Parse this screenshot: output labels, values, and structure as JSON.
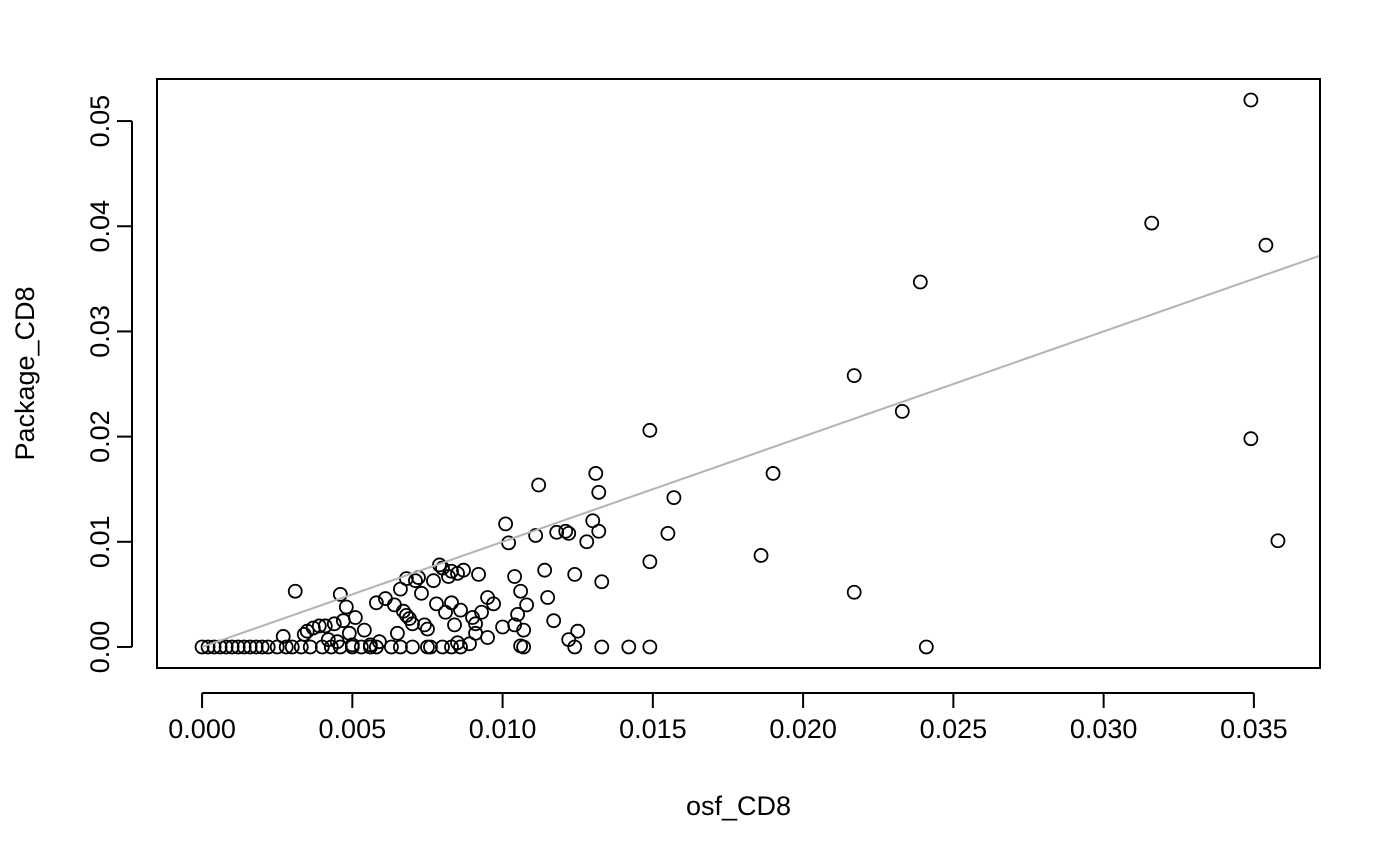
{
  "chart_data": {
    "type": "scatter",
    "title": "",
    "xlabel": "osf_CD8",
    "ylabel": "Package_CD8",
    "xlim": [
      -0.0015,
      0.0372
    ],
    "ylim": [
      -0.002,
      0.054
    ],
    "x_ticks": [
      0.0,
      0.005,
      0.01,
      0.015,
      0.02,
      0.025,
      0.03,
      0.035
    ],
    "x_tick_labels": [
      "0.000",
      "0.005",
      "0.010",
      "0.015",
      "0.020",
      "0.025",
      "0.030",
      "0.035"
    ],
    "y_ticks": [
      0.0,
      0.01,
      0.02,
      0.03,
      0.04,
      0.05
    ],
    "y_tick_labels": [
      "0.00",
      "0.01",
      "0.02",
      "0.03",
      "0.04",
      "0.05"
    ],
    "grid": false,
    "marker": "open-circle",
    "colors": {
      "points": "#000000",
      "fit_line": "#b3b3b3"
    },
    "fit_line": {
      "intercept": 0.0,
      "slope": 1.0
    },
    "points": [
      [
        0.0,
        0.0
      ],
      [
        0.0002,
        0.0
      ],
      [
        0.0004,
        0.0
      ],
      [
        0.0006,
        0.0
      ],
      [
        0.0008,
        0.0
      ],
      [
        0.001,
        0.0
      ],
      [
        0.0012,
        0.0
      ],
      [
        0.0014,
        0.0
      ],
      [
        0.0016,
        0.0
      ],
      [
        0.0018,
        0.0
      ],
      [
        0.002,
        0.0
      ],
      [
        0.0022,
        0.0
      ],
      [
        0.0025,
        0.0
      ],
      [
        0.0028,
        0.0
      ],
      [
        0.003,
        0.0
      ],
      [
        0.0033,
        0.0
      ],
      [
        0.0036,
        0.0
      ],
      [
        0.004,
        0.0
      ],
      [
        0.0043,
        0.0
      ],
      [
        0.0046,
        0.0
      ],
      [
        0.005,
        0.0
      ],
      [
        0.0053,
        0.0
      ],
      [
        0.0056,
        0.0
      ],
      [
        0.0058,
        0.0
      ],
      [
        0.0063,
        0.0
      ],
      [
        0.0066,
        0.0
      ],
      [
        0.007,
        0.0
      ],
      [
        0.0075,
        0.0
      ],
      [
        0.008,
        0.0
      ],
      [
        0.0083,
        0.0
      ],
      [
        0.0086,
        0.0
      ],
      [
        0.0107,
        0.0
      ],
      [
        0.0124,
        0.0
      ],
      [
        0.0133,
        0.0
      ],
      [
        0.0142,
        0.0
      ],
      [
        0.0149,
        0.0
      ],
      [
        0.0241,
        0.0
      ],
      [
        0.0027,
        0.001
      ],
      [
        0.0031,
        0.0053
      ],
      [
        0.0034,
        0.0012
      ],
      [
        0.0035,
        0.0015
      ],
      [
        0.0037,
        0.0018
      ],
      [
        0.0039,
        0.002
      ],
      [
        0.0041,
        0.002
      ],
      [
        0.0042,
        0.0007
      ],
      [
        0.0044,
        0.0022
      ],
      [
        0.0045,
        0.0005
      ],
      [
        0.0046,
        0.005
      ],
      [
        0.0047,
        0.0025
      ],
      [
        0.0048,
        0.0038
      ],
      [
        0.0049,
        0.0013
      ],
      [
        0.005,
        0.0002
      ],
      [
        0.0051,
        0.0028
      ],
      [
        0.0054,
        0.0016
      ],
      [
        0.0056,
        0.0002
      ],
      [
        0.0058,
        0.0042
      ],
      [
        0.0059,
        0.0005
      ],
      [
        0.0061,
        0.0046
      ],
      [
        0.0064,
        0.004
      ],
      [
        0.0065,
        0.0013
      ],
      [
        0.0066,
        0.0055
      ],
      [
        0.0067,
        0.0034
      ],
      [
        0.0068,
        0.003
      ],
      [
        0.0068,
        0.0065
      ],
      [
        0.0069,
        0.0027
      ],
      [
        0.007,
        0.0022
      ],
      [
        0.0071,
        0.0063
      ],
      [
        0.0072,
        0.0066
      ],
      [
        0.0073,
        0.0051
      ],
      [
        0.0074,
        0.0021
      ],
      [
        0.0075,
        0.0017
      ],
      [
        0.0076,
        0.0
      ],
      [
        0.0077,
        0.0063
      ],
      [
        0.0078,
        0.0041
      ],
      [
        0.0079,
        0.0078
      ],
      [
        0.008,
        0.0075
      ],
      [
        0.0081,
        0.0033
      ],
      [
        0.0082,
        0.0067
      ],
      [
        0.0083,
        0.0042
      ],
      [
        0.0083,
        0.0072
      ],
      [
        0.0084,
        0.0021
      ],
      [
        0.0085,
        0.0004
      ],
      [
        0.0085,
        0.007
      ],
      [
        0.0086,
        0.0035
      ],
      [
        0.0087,
        0.0073
      ],
      [
        0.0089,
        0.0003
      ],
      [
        0.009,
        0.0028
      ],
      [
        0.0091,
        0.0013
      ],
      [
        0.0091,
        0.0022
      ],
      [
        0.0092,
        0.0069
      ],
      [
        0.0093,
        0.0033
      ],
      [
        0.0095,
        0.0009
      ],
      [
        0.0095,
        0.0047
      ],
      [
        0.0097,
        0.0041
      ],
      [
        0.01,
        0.0019
      ],
      [
        0.0101,
        0.0117
      ],
      [
        0.0102,
        0.0099
      ],
      [
        0.0104,
        0.0067
      ],
      [
        0.0104,
        0.0021
      ],
      [
        0.0105,
        0.0031
      ],
      [
        0.0106,
        0.0053
      ],
      [
        0.0107,
        0.0016
      ],
      [
        0.0106,
        0.0001
      ],
      [
        0.0108,
        0.004
      ],
      [
        0.0111,
        0.0106
      ],
      [
        0.0112,
        0.0154
      ],
      [
        0.0114,
        0.0073
      ],
      [
        0.0115,
        0.0047
      ],
      [
        0.0117,
        0.0025
      ],
      [
        0.0118,
        0.0109
      ],
      [
        0.0121,
        0.011
      ],
      [
        0.0122,
        0.0007
      ],
      [
        0.0122,
        0.0108
      ],
      [
        0.0124,
        0.0069
      ],
      [
        0.0125,
        0.0015
      ],
      [
        0.0128,
        0.01
      ],
      [
        0.013,
        0.012
      ],
      [
        0.0131,
        0.0165
      ],
      [
        0.0132,
        0.011
      ],
      [
        0.0132,
        0.0147
      ],
      [
        0.0133,
        0.0062
      ],
      [
        0.0149,
        0.0206
      ],
      [
        0.0149,
        0.0081
      ],
      [
        0.0155,
        0.0108
      ],
      [
        0.0157,
        0.0142
      ],
      [
        0.0186,
        0.0087
      ],
      [
        0.019,
        0.0165
      ],
      [
        0.0217,
        0.0258
      ],
      [
        0.0217,
        0.0052
      ],
      [
        0.0233,
        0.0224
      ],
      [
        0.0239,
        0.0347
      ],
      [
        0.0316,
        0.0403
      ],
      [
        0.0349,
        0.052
      ],
      [
        0.0349,
        0.0198
      ],
      [
        0.0354,
        0.0382
      ],
      [
        0.0358,
        0.0101
      ]
    ]
  }
}
